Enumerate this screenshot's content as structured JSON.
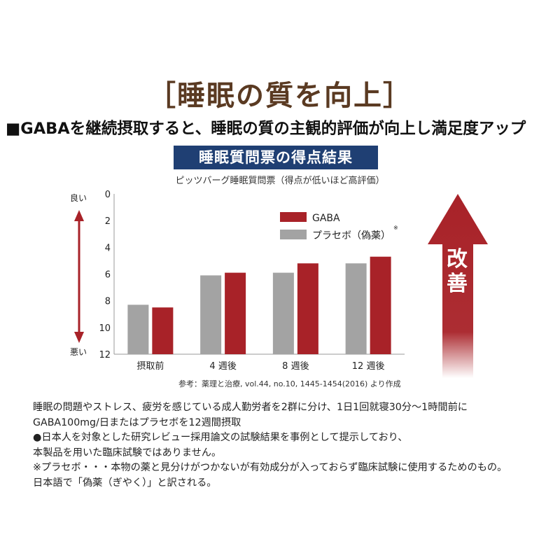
{
  "title": "［睡眠の質を向上］",
  "headline": "■GABAを継続摂取すると、睡眠の質の主観的評価が向上し満足度アップ",
  "banner": "睡眠質問票の得点結果",
  "subtitle": "ピッツバーグ睡眠質問票（得点が低いほど高評価）",
  "side_good": "良い",
  "side_bad": "悪い",
  "improve_label_1": "改",
  "improve_label_2": "善",
  "source": "参考：薬理と治療, vol.44, no.10, 1445-1454(2016) より作成",
  "notes": [
    "睡眠の問題やストレス、疲労を感じている成人勤労者を2群に分け、1日1回就寝30分～1時間前に",
    "GABA100mg/日またはプラセボを12週間摂取",
    "●日本人を対象とした研究レビュー採用論文の試験結果を事例として提示しており、",
    "本製品を用いた臨床試験ではありません。",
    "※プラセボ・・・本物の薬と見分けがつかないが有効成分が入っておらず臨床試験に使用するためのもの。",
    "日本語で「偽薬（ぎやく）」と訳される。"
  ],
  "colors": {
    "gaba": "#a82228",
    "placebo": "#a3a3a3",
    "title": "#5a3a22",
    "banner": "#1f3f73"
  },
  "chart_data": {
    "type": "bar",
    "categories": [
      "摂取前",
      "4 週後",
      "8 週後",
      "12 週後"
    ],
    "series": [
      {
        "name": "プラセボ（偽薬）",
        "legend_mark": "※",
        "values": [
          8.3,
          6.1,
          5.9,
          5.2
        ]
      },
      {
        "name": "GABA",
        "values": [
          8.5,
          5.9,
          5.2,
          4.7
        ]
      }
    ],
    "ylim": [
      0,
      12
    ],
    "y_inverted": true,
    "yticks": [
      "0",
      "2",
      "4",
      "6",
      "8",
      "10",
      "12"
    ],
    "legend_order": [
      "GABA",
      "プラセボ（偽薬）"
    ],
    "legend_position": "top-right",
    "grid": false
  }
}
